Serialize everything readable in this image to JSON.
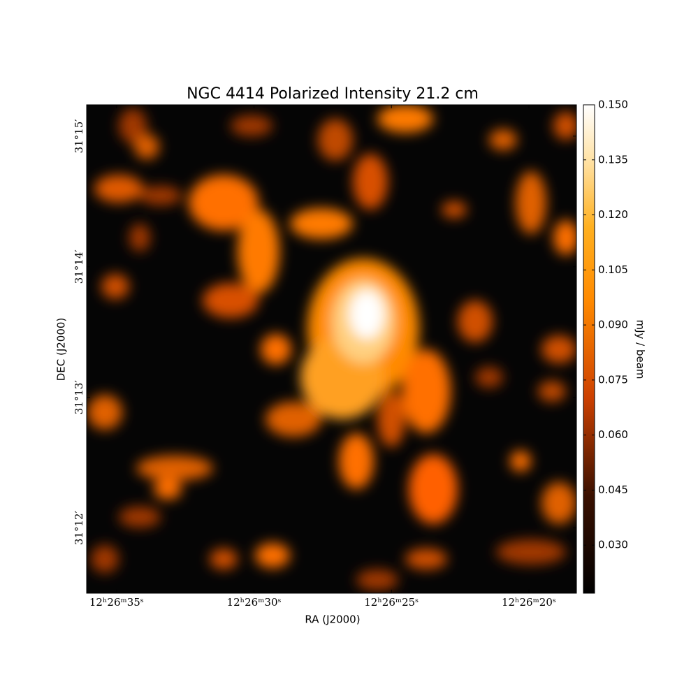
{
  "chart_data": {
    "type": "image",
    "title": "NGC 4414 Polarized Intensity 21.2 cm",
    "xlabel": "RA (J2000)",
    "ylabel": "DEC (J2000)",
    "xlim": [
      36.09,
      18.27
    ],
    "xticks": [
      {
        "value": 35,
        "label": "12ʰ26ᵐ35ˢ"
      },
      {
        "value": 30,
        "label": "12ʰ26ᵐ30ˢ"
      },
      {
        "value": 25,
        "label": "12ʰ26ᵐ25ˢ"
      },
      {
        "value": 20,
        "label": "12ʰ26ᵐ20ˢ"
      }
    ],
    "ylim": [
      11.5,
      15.24
    ],
    "yticks": [
      {
        "value": 15,
        "label": "31°15′"
      },
      {
        "value": 14,
        "label": "31°14′"
      },
      {
        "value": 13,
        "label": "31°13′"
      },
      {
        "value": 12,
        "label": "31°12′"
      }
    ],
    "colorbar_label": "mJy / beam",
    "clim": [
      0.0169,
      0.15
    ],
    "cticks": [
      {
        "value": 0.03,
        "label": "0.030"
      },
      0.045,
      {
        "value": 0.06,
        "label": "0.060"
      },
      0.075,
      {
        "value": 0.09,
        "label": "0.090"
      },
      0.105,
      {
        "value": 0.12,
        "label": "0.120"
      },
      0.135,
      {
        "value": 0.15,
        "label": "0.150"
      }
    ]
  }
}
